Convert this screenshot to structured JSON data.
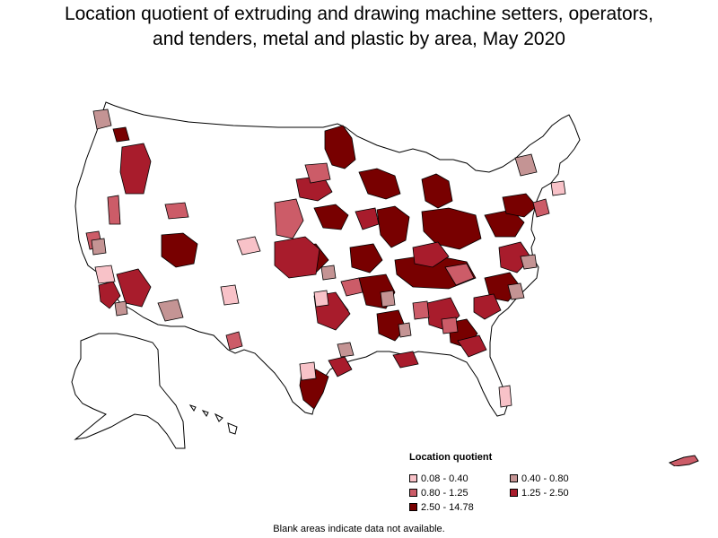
{
  "title": {
    "line1": "Location quotient of extruding and drawing machine setters, operators,",
    "line2": "and tenders, metal and plastic by area, May 2020"
  },
  "legend": {
    "title": "Location quotient",
    "items": [
      {
        "label": "0.08 - 0.40",
        "color": "#f8c2c8"
      },
      {
        "label": "0.40 - 0.80",
        "color": "#c49494"
      },
      {
        "label": "0.80 - 1.25",
        "color": "#cc5c68"
      },
      {
        "label": "1.25 - 2.50",
        "color": "#a81c2c"
      },
      {
        "label": "2.50 - 14.78",
        "color": "#780000"
      }
    ]
  },
  "note": "Blank areas indicate data not available.",
  "colors": {
    "no_data": "#ffffff",
    "border": "#000000"
  }
}
